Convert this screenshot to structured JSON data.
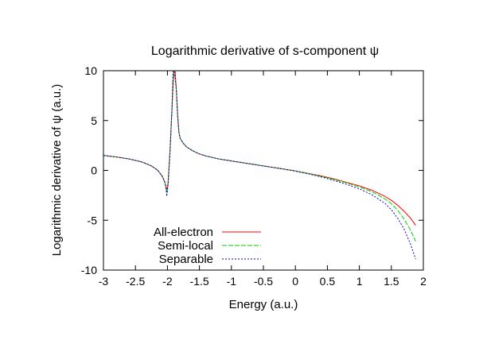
{
  "chart_data": {
    "type": "line",
    "title": "Logarithmic derivative of s-component ψ",
    "xlabel": "Energy (a.u.)",
    "ylabel": "Logarithmic derivative of ψ (a.u.)",
    "xlim": [
      -3,
      2
    ],
    "ylim": [
      -10,
      10
    ],
    "xticks": [
      -3,
      -2.5,
      -2,
      -1.5,
      -1,
      -0.5,
      0,
      0.5,
      1,
      1.5,
      2
    ],
    "xtick_labels": [
      "-3",
      "-2.5",
      "-2",
      "-1.5",
      "-1",
      "-0.5",
      "0",
      "0.5",
      "1",
      "1.5",
      "2"
    ],
    "yticks": [
      -10,
      -5,
      0,
      5,
      10
    ],
    "ytick_labels": [
      "-10",
      "-5",
      "0",
      "5",
      "10"
    ],
    "grid": false,
    "legend_position": "bottom-left",
    "series": [
      {
        "name": "All-electron",
        "color": "#ff0000",
        "dash": "",
        "x": [
          -3,
          -2.8,
          -2.6,
          -2.4,
          -2.25,
          -2.15,
          -2.08,
          -2.04,
          -2.02,
          -2.01,
          -1.99,
          -1.96,
          -1.93,
          -1.9,
          -1.88,
          -1.86,
          -1.84,
          -1.82,
          -1.8,
          -1.75,
          -1.7,
          -1.6,
          -1.5,
          -1.4,
          -1.3,
          -1.2,
          -1.1,
          -1,
          -0.8,
          -0.6,
          -0.4,
          -0.2,
          0,
          0.2,
          0.4,
          0.6,
          0.8,
          1,
          1.2,
          1.4,
          1.5,
          1.6,
          1.7,
          1.8,
          1.88
        ],
        "y": [
          1.5,
          1.35,
          1.15,
          0.85,
          0.45,
          0,
          -0.6,
          -1.2,
          -1.7,
          -2.1,
          -1.2,
          2.0,
          6.0,
          10,
          10,
          8.0,
          5.5,
          3.8,
          3.2,
          2.7,
          2.35,
          1.95,
          1.65,
          1.45,
          1.3,
          1.15,
          1.05,
          0.95,
          0.75,
          0.55,
          0.35,
          0.15,
          -0.05,
          -0.3,
          -0.55,
          -0.85,
          -1.2,
          -1.55,
          -2.0,
          -2.6,
          -3.0,
          -3.5,
          -4.1,
          -4.8,
          -5.5
        ]
      },
      {
        "name": "Semi-local",
        "color": "#00cc00",
        "dash": "6,2",
        "x": [
          -3,
          -2.8,
          -2.6,
          -2.4,
          -2.25,
          -2.15,
          -2.08,
          -2.04,
          -2.02,
          -2.01,
          -1.99,
          -1.96,
          -1.93,
          -1.91,
          -1.89,
          -1.86,
          -1.84,
          -1.82,
          -1.8,
          -1.75,
          -1.7,
          -1.6,
          -1.5,
          -1.4,
          -1.3,
          -1.2,
          -1.1,
          -1,
          -0.8,
          -0.6,
          -0.4,
          -0.2,
          0,
          0.2,
          0.4,
          0.6,
          0.8,
          1,
          1.2,
          1.4,
          1.5,
          1.6,
          1.7,
          1.8,
          1.88
        ],
        "y": [
          1.5,
          1.35,
          1.15,
          0.85,
          0.45,
          0,
          -0.6,
          -1.2,
          -1.8,
          -2.3,
          -1.4,
          1.8,
          6.0,
          10,
          10,
          8.0,
          5.5,
          3.8,
          3.2,
          2.7,
          2.35,
          1.95,
          1.65,
          1.45,
          1.3,
          1.15,
          1.05,
          0.95,
          0.75,
          0.55,
          0.35,
          0.15,
          -0.05,
          -0.3,
          -0.6,
          -0.9,
          -1.25,
          -1.65,
          -2.15,
          -2.85,
          -3.35,
          -4.0,
          -4.9,
          -6.0,
          -7.1
        ]
      },
      {
        "name": "Separable",
        "color": "#0000cc",
        "dash": "2,2",
        "x": [
          -3,
          -2.8,
          -2.6,
          -2.4,
          -2.25,
          -2.15,
          -2.08,
          -2.04,
          -2.02,
          -2.01,
          -1.99,
          -1.96,
          -1.93,
          -1.91,
          -1.89,
          -1.86,
          -1.84,
          -1.82,
          -1.8,
          -1.75,
          -1.7,
          -1.6,
          -1.5,
          -1.4,
          -1.3,
          -1.2,
          -1.1,
          -1,
          -0.8,
          -0.6,
          -0.4,
          -0.2,
          0,
          0.2,
          0.4,
          0.6,
          0.8,
          1,
          1.2,
          1.4,
          1.5,
          1.6,
          1.7,
          1.8,
          1.88
        ],
        "y": [
          1.5,
          1.35,
          1.15,
          0.85,
          0.45,
          0,
          -0.6,
          -1.2,
          -1.9,
          -2.6,
          -1.5,
          1.7,
          6.0,
          10,
          10,
          8.0,
          5.5,
          3.8,
          3.2,
          2.7,
          2.35,
          1.95,
          1.65,
          1.45,
          1.3,
          1.15,
          1.05,
          0.95,
          0.75,
          0.55,
          0.35,
          0.15,
          -0.08,
          -0.35,
          -0.65,
          -1.0,
          -1.4,
          -1.85,
          -2.45,
          -3.3,
          -3.95,
          -4.8,
          -5.9,
          -7.4,
          -8.9
        ]
      }
    ]
  }
}
